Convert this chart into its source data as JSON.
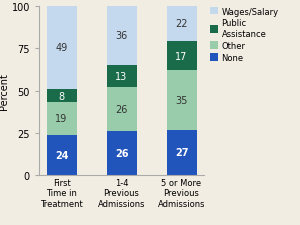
{
  "categories": [
    "First\nTime in\nTreatment",
    "1-4\nPrevious\nAdmissions",
    "5 or More\nPrevious\nAdmissions"
  ],
  "series": {
    "None": [
      24,
      26,
      27
    ],
    "Other": [
      19,
      26,
      35
    ],
    "Public Assistance": [
      8,
      13,
      17
    ],
    "Wages/Salary": [
      49,
      36,
      22
    ]
  },
  "colors": {
    "None": "#2255bb",
    "Other": "#99ccaa",
    "Public Assistance": "#1a6b4a",
    "Wages/Salary": "#c5d9ee"
  },
  "ylabel": "Percent",
  "ylim": [
    0,
    100
  ],
  "bar_width": 0.5,
  "tick_fontsize": 7,
  "label_fontsize": 7,
  "background_color": "#f2ede3"
}
